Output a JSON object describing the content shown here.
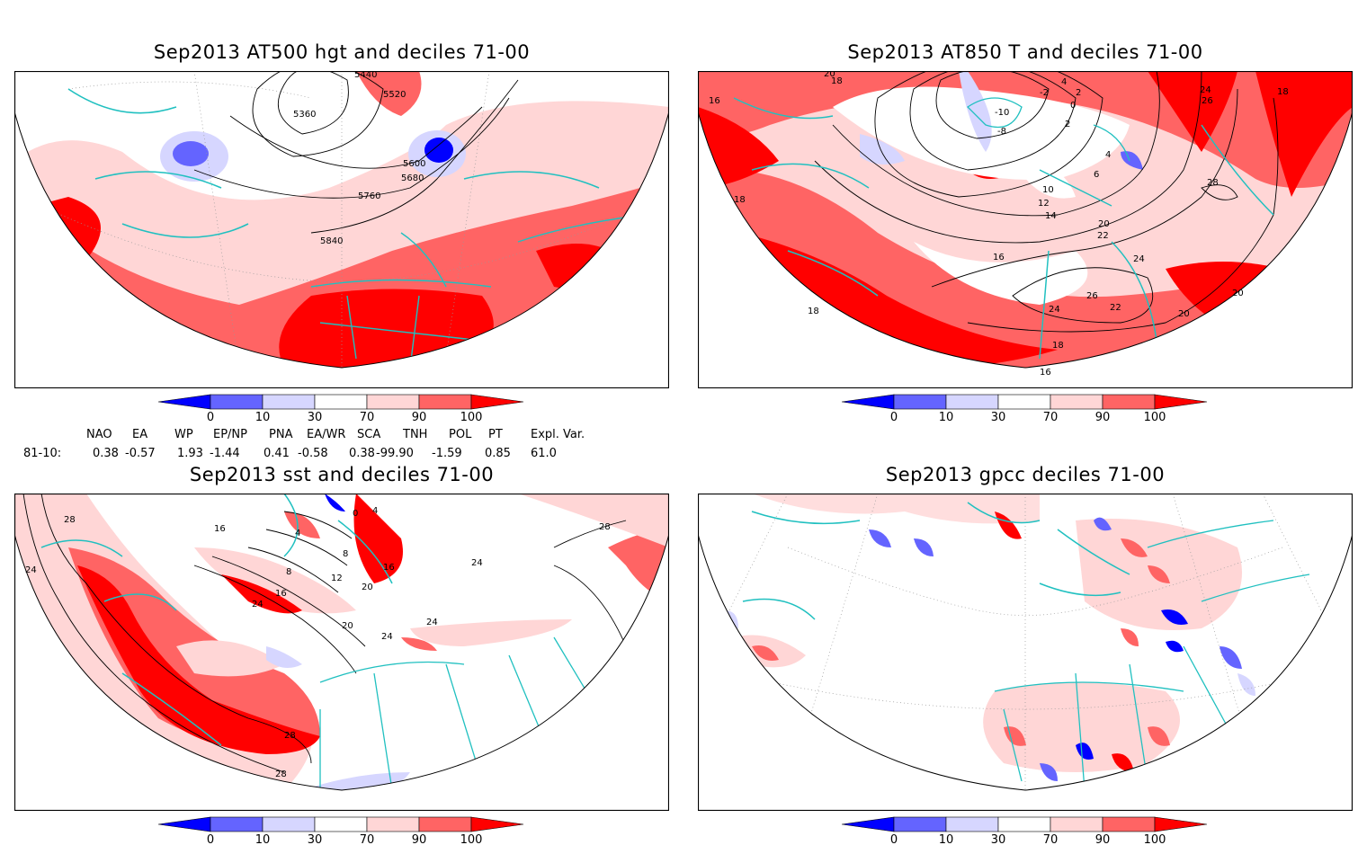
{
  "panels": [
    {
      "id": "p1",
      "title": "Sep2013 AT500 hgt and deciles 71-00",
      "contour_labels": [
        "5440",
        "5520",
        "5360",
        "5600",
        "5680",
        "5760",
        "5840"
      ]
    },
    {
      "id": "p2",
      "title": "Sep2013 AT850 T and deciles 71-00",
      "contour_labels": [
        "20",
        "18",
        "16",
        "18",
        "18",
        "4",
        "2",
        "0",
        "-2",
        "-10",
        "-8",
        "2",
        "4",
        "6",
        "10",
        "12",
        "14",
        "16",
        "20",
        "22",
        "24",
        "26",
        "24",
        "22",
        "20",
        "18",
        "16",
        "24",
        "26",
        "28",
        "18",
        "20"
      ]
    },
    {
      "id": "p3",
      "title": "Sep2013 sst and deciles 71-00",
      "contour_labels": [
        "28",
        "24",
        "16",
        "4",
        "0",
        "4",
        "8",
        "12",
        "16",
        "20",
        "24",
        "20",
        "24",
        "24",
        "28",
        "28",
        "28",
        "24",
        "16",
        "8"
      ]
    },
    {
      "id": "p4",
      "title": "Sep2013 gpcc deciles 71-00",
      "contour_labels": []
    }
  ],
  "colorbar": {
    "ticks": [
      "0",
      "10",
      "30",
      "70",
      "90",
      "100"
    ],
    "colors": {
      "bin_0_10": "#6464ff",
      "bin_10_30": "#d6d6ff",
      "bin_30_70": "#ffffff",
      "bin_70_90": "#ffd6d6",
      "bin_90_100": "#ff6464",
      "over_100": "#ff0000",
      "under_0": "#0000ff"
    }
  },
  "teleconnection": {
    "headers": [
      "NAO",
      "EA",
      "WP",
      "EP/NP",
      "PNA",
      "EA/WR",
      "SCA",
      "TNH",
      "POL",
      "PT",
      "Expl. Var."
    ],
    "row_label": "81-10:",
    "values": [
      "0.38",
      "-0.57",
      "1.93",
      "-1.44",
      "0.41",
      "-0.58",
      "0.38",
      "-99.90",
      "-1.59",
      "0.85",
      "61.0"
    ]
  },
  "colors": {
    "coast": "#20c0c0",
    "frame": "#000000",
    "grid": "#999999"
  }
}
